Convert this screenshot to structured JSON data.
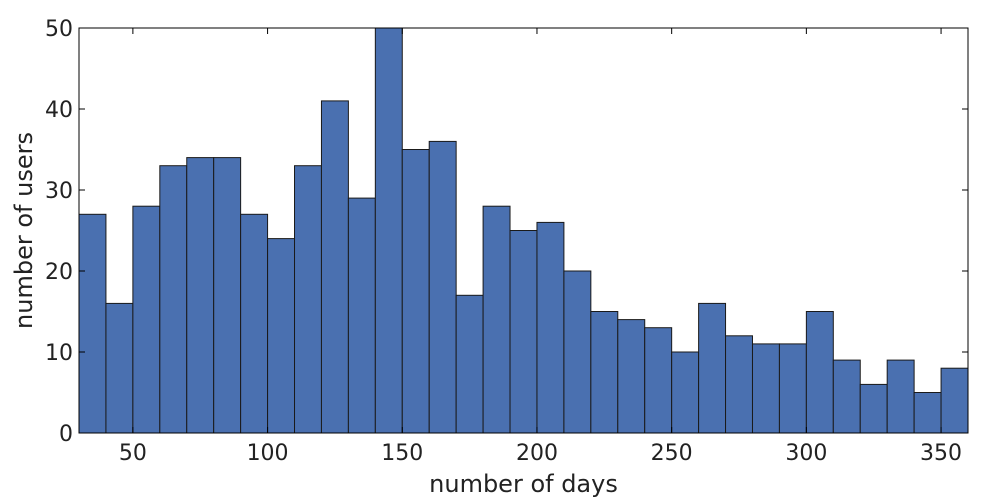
{
  "chart_data": {
    "type": "bar",
    "title": "",
    "xlabel": "number of days",
    "ylabel": "number of users",
    "xlim": [
      30,
      360
    ],
    "ylim": [
      0,
      50
    ],
    "bin_width": 10,
    "x_ticks": [
      50,
      100,
      150,
      200,
      250,
      300,
      350
    ],
    "y_ticks": [
      0,
      10,
      20,
      30,
      40,
      50
    ],
    "grid": false,
    "bar_color": "#4a70b0",
    "bins": [
      {
        "x0": 30,
        "x1": 40,
        "value": 27
      },
      {
        "x0": 40,
        "x1": 50,
        "value": 16
      },
      {
        "x0": 50,
        "x1": 60,
        "value": 28
      },
      {
        "x0": 60,
        "x1": 70,
        "value": 33
      },
      {
        "x0": 70,
        "x1": 80,
        "value": 34
      },
      {
        "x0": 80,
        "x1": 90,
        "value": 34
      },
      {
        "x0": 90,
        "x1": 100,
        "value": 27
      },
      {
        "x0": 100,
        "x1": 110,
        "value": 24
      },
      {
        "x0": 110,
        "x1": 120,
        "value": 33
      },
      {
        "x0": 120,
        "x1": 130,
        "value": 41
      },
      {
        "x0": 130,
        "x1": 140,
        "value": 29
      },
      {
        "x0": 140,
        "x1": 150,
        "value": 50
      },
      {
        "x0": 150,
        "x1": 160,
        "value": 35
      },
      {
        "x0": 160,
        "x1": 170,
        "value": 36
      },
      {
        "x0": 170,
        "x1": 180,
        "value": 17
      },
      {
        "x0": 180,
        "x1": 190,
        "value": 28
      },
      {
        "x0": 190,
        "x1": 200,
        "value": 25
      },
      {
        "x0": 200,
        "x1": 210,
        "value": 26
      },
      {
        "x0": 210,
        "x1": 220,
        "value": 20
      },
      {
        "x0": 220,
        "x1": 230,
        "value": 15
      },
      {
        "x0": 230,
        "x1": 240,
        "value": 14
      },
      {
        "x0": 240,
        "x1": 250,
        "value": 13
      },
      {
        "x0": 250,
        "x1": 260,
        "value": 10
      },
      {
        "x0": 260,
        "x1": 270,
        "value": 16
      },
      {
        "x0": 270,
        "x1": 280,
        "value": 12
      },
      {
        "x0": 280,
        "x1": 290,
        "value": 11
      },
      {
        "x0": 290,
        "x1": 300,
        "value": 11
      },
      {
        "x0": 300,
        "x1": 310,
        "value": 15
      },
      {
        "x0": 310,
        "x1": 320,
        "value": 9
      },
      {
        "x0": 320,
        "x1": 330,
        "value": 6
      },
      {
        "x0": 330,
        "x1": 340,
        "value": 9
      },
      {
        "x0": 340,
        "x1": 350,
        "value": 5
      },
      {
        "x0": 350,
        "x1": 360,
        "value": 8
      }
    ]
  }
}
